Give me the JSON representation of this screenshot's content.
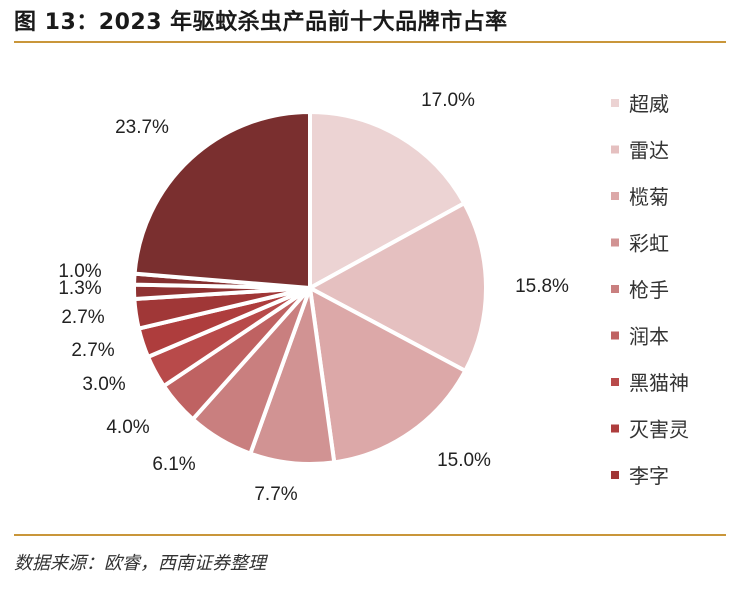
{
  "title": "图 13：2023 年驱蚊杀虫产品前十大品牌市占率",
  "source": "数据来源：欧睿，西南证券整理",
  "chart_data": {
    "type": "pie",
    "title": "图 13：2023 年驱蚊杀虫产品前十大品牌市占率",
    "slices": [
      {
        "name": "超威",
        "value": 17.0,
        "label": "17.0%",
        "color": "#ecd3d3"
      },
      {
        "name": "雷达",
        "value": 15.8,
        "label": "15.8%",
        "color": "#e5c0c0"
      },
      {
        "name": "榄菊",
        "value": 15.0,
        "label": "15.0%",
        "color": "#dca8a8"
      },
      {
        "name": "彩虹",
        "value": 7.7,
        "label": "7.7%",
        "color": "#d19393"
      },
      {
        "name": "枪手",
        "value": 6.1,
        "label": "6.1%",
        "color": "#c97f7f"
      },
      {
        "name": "润本",
        "value": 4.0,
        "label": "4.0%",
        "color": "#bf6262"
      },
      {
        "name": "黑猫神",
        "value": 3.0,
        "label": "3.0%",
        "color": "#b84a4a"
      },
      {
        "name": "灭害灵",
        "value": 2.7,
        "label": "2.7%",
        "color": "#ae3d3d"
      },
      {
        "name": "李字",
        "value": 2.7,
        "label": "2.7%",
        "color": "#a03737"
      },
      {
        "name": "",
        "value": 1.3,
        "label": "1.3%",
        "color": "#8f3232"
      },
      {
        "name": "",
        "value": 1.0,
        "label": "1.0%",
        "color": "#853030"
      },
      {
        "name": "",
        "value": 23.7,
        "label": "23.7%",
        "color": "#7a2f2f"
      }
    ],
    "legend": [
      "超威",
      "雷达",
      "榄菊",
      "彩虹",
      "枪手",
      "润本",
      "黑猫神",
      "灭害灵",
      "李字"
    ],
    "legend_colors": [
      "#ecd3d3",
      "#e5c0c0",
      "#dca8a8",
      "#d19393",
      "#c97f7f",
      "#bf6262",
      "#b84a4a",
      "#ae3d3d",
      "#a03737"
    ],
    "legend_position": "right",
    "start_angle": "12 o'clock",
    "direction": "clockwise"
  }
}
